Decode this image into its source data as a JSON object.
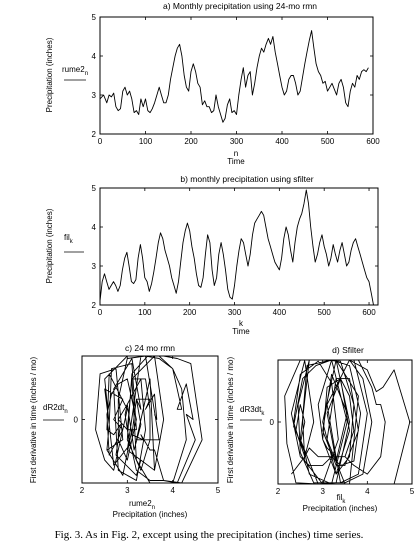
{
  "chart_data": [
    {
      "id": "a",
      "type": "line",
      "title": "a) Monthly precipitation using 24-mo rmn",
      "xlabel": "Time",
      "x_axis_symbol": "n",
      "ylabel": "Precipitation (inches)",
      "legend_label": "rume2",
      "legend_sub": "n",
      "xlim": [
        0,
        600
      ],
      "ylim": [
        2,
        5
      ],
      "xticks": [
        0,
        100,
        200,
        300,
        400,
        500,
        600
      ],
      "yticks": [
        2,
        3,
        4,
        5
      ],
      "x_end": 590,
      "series": [
        {
          "name": "rume2",
          "points": [
            [
              0,
              2.9
            ],
            [
              8,
              3.0
            ],
            [
              15,
              2.8
            ],
            [
              20,
              3.0
            ],
            [
              25,
              2.95
            ],
            [
              30,
              3.05
            ],
            [
              35,
              2.7
            ],
            [
              40,
              2.6
            ],
            [
              45,
              2.65
            ],
            [
              50,
              3.1
            ],
            [
              55,
              3.2
            ],
            [
              60,
              3.0
            ],
            [
              65,
              3.1
            ],
            [
              70,
              2.9
            ],
            [
              75,
              2.55
            ],
            [
              80,
              2.6
            ],
            [
              85,
              2.5
            ],
            [
              90,
              2.9
            ],
            [
              95,
              2.7
            ],
            [
              100,
              2.9
            ],
            [
              105,
              2.6
            ],
            [
              110,
              2.55
            ],
            [
              115,
              2.65
            ],
            [
              120,
              2.8
            ],
            [
              125,
              3.0
            ],
            [
              130,
              3.2
            ],
            [
              135,
              3.0
            ],
            [
              140,
              2.8
            ],
            [
              145,
              2.8
            ],
            [
              150,
              3.0
            ],
            [
              155,
              3.4
            ],
            [
              160,
              3.7
            ],
            [
              165,
              4.0
            ],
            [
              170,
              4.2
            ],
            [
              175,
              4.3
            ],
            [
              180,
              4.0
            ],
            [
              185,
              3.5
            ],
            [
              190,
              3.2
            ],
            [
              195,
              3.1
            ],
            [
              200,
              3.6
            ],
            [
              205,
              3.8
            ],
            [
              210,
              3.6
            ],
            [
              215,
              3.3
            ],
            [
              220,
              3.2
            ],
            [
              225,
              2.75
            ],
            [
              230,
              2.85
            ],
            [
              235,
              2.7
            ],
            [
              240,
              2.7
            ],
            [
              245,
              2.55
            ],
            [
              250,
              2.6
            ],
            [
              255,
              3.0
            ],
            [
              260,
              2.7
            ],
            [
              265,
              2.5
            ],
            [
              270,
              2.3
            ],
            [
              275,
              2.4
            ],
            [
              280,
              2.75
            ],
            [
              285,
              2.9
            ],
            [
              290,
              2.55
            ],
            [
              295,
              2.6
            ],
            [
              300,
              2.5
            ],
            [
              305,
              3.0
            ],
            [
              310,
              3.4
            ],
            [
              315,
              3.7
            ],
            [
              320,
              3.2
            ],
            [
              325,
              3.5
            ],
            [
              330,
              3.6
            ],
            [
              335,
              3.0
            ],
            [
              340,
              3.3
            ],
            [
              345,
              3.7
            ],
            [
              350,
              4.0
            ],
            [
              355,
              4.2
            ],
            [
              360,
              4.1
            ],
            [
              365,
              4.3
            ],
            [
              370,
              4.45
            ],
            [
              375,
              4.3
            ],
            [
              380,
              4.5
            ],
            [
              385,
              4.1
            ],
            [
              390,
              3.8
            ],
            [
              395,
              3.5
            ],
            [
              400,
              3.2
            ],
            [
              405,
              3.0
            ],
            [
              410,
              3.1
            ],
            [
              415,
              3.4
            ],
            [
              420,
              3.5
            ],
            [
              425,
              3.5
            ],
            [
              430,
              3.3
            ],
            [
              435,
              3.0
            ],
            [
              440,
              3.1
            ],
            [
              445,
              3.45
            ],
            [
              450,
              3.8
            ],
            [
              455,
              4.1
            ],
            [
              460,
              4.4
            ],
            [
              465,
              4.65
            ],
            [
              470,
              4.2
            ],
            [
              475,
              3.8
            ],
            [
              480,
              3.6
            ],
            [
              485,
              3.5
            ],
            [
              490,
              3.3
            ],
            [
              495,
              3.35
            ],
            [
              500,
              3.1
            ],
            [
              505,
              3.2
            ],
            [
              510,
              3.3
            ],
            [
              515,
              3.15
            ],
            [
              520,
              3.0
            ],
            [
              525,
              3.3
            ],
            [
              530,
              3.4
            ],
            [
              535,
              3.2
            ],
            [
              540,
              2.8
            ],
            [
              545,
              2.7
            ],
            [
              550,
              3.1
            ],
            [
              555,
              3.3
            ],
            [
              560,
              3.2
            ],
            [
              565,
              3.5
            ],
            [
              570,
              3.4
            ],
            [
              575,
              3.6
            ],
            [
              580,
              3.65
            ],
            [
              585,
              3.6
            ],
            [
              590,
              3.7
            ]
          ]
        }
      ]
    },
    {
      "id": "b",
      "type": "line",
      "title": "b) monthly precipitation using sfilter",
      "xlabel": "Time",
      "x_axis_symbol": "k",
      "ylabel": "Precipitation (inches)",
      "legend_label": "fil",
      "legend_sub": "k",
      "xlim": [
        0,
        620
      ],
      "ylim": [
        2,
        5
      ],
      "xticks": [
        0,
        100,
        200,
        300,
        400,
        500,
        600
      ],
      "yticks": [
        2,
        3,
        4,
        5
      ],
      "x_end": 610,
      "series": [
        {
          "name": "fil",
          "points": [
            [
              0,
              2.1
            ],
            [
              5,
              2.6
            ],
            [
              10,
              2.8
            ],
            [
              15,
              2.6
            ],
            [
              20,
              2.4
            ],
            [
              25,
              2.5
            ],
            [
              30,
              2.6
            ],
            [
              35,
              2.5
            ],
            [
              40,
              2.35
            ],
            [
              45,
              2.5
            ],
            [
              50,
              2.9
            ],
            [
              55,
              3.2
            ],
            [
              60,
              3.35
            ],
            [
              65,
              3.0
            ],
            [
              70,
              2.6
            ],
            [
              75,
              2.55
            ],
            [
              80,
              2.65
            ],
            [
              85,
              3.2
            ],
            [
              90,
              3.55
            ],
            [
              95,
              3.2
            ],
            [
              100,
              2.7
            ],
            [
              105,
              2.6
            ],
            [
              110,
              2.35
            ],
            [
              115,
              2.55
            ],
            [
              120,
              2.85
            ],
            [
              125,
              3.2
            ],
            [
              130,
              3.6
            ],
            [
              135,
              3.85
            ],
            [
              140,
              3.7
            ],
            [
              145,
              3.4
            ],
            [
              150,
              3.2
            ],
            [
              155,
              3.0
            ],
            [
              160,
              2.7
            ],
            [
              165,
              2.5
            ],
            [
              170,
              2.3
            ],
            [
              175,
              2.6
            ],
            [
              180,
              3.1
            ],
            [
              185,
              3.6
            ],
            [
              190,
              3.9
            ],
            [
              195,
              4.1
            ],
            [
              200,
              3.9
            ],
            [
              205,
              3.5
            ],
            [
              210,
              3.2
            ],
            [
              215,
              2.8
            ],
            [
              220,
              2.5
            ],
            [
              225,
              2.45
            ],
            [
              230,
              2.7
            ],
            [
              235,
              3.3
            ],
            [
              240,
              3.8
            ],
            [
              245,
              3.6
            ],
            [
              250,
              2.9
            ],
            [
              255,
              2.5
            ],
            [
              260,
              2.7
            ],
            [
              265,
              3.3
            ],
            [
              270,
              3.6
            ],
            [
              275,
              3.3
            ],
            [
              280,
              2.9
            ],
            [
              285,
              2.4
            ],
            [
              290,
              2.2
            ],
            [
              295,
              2.15
            ],
            [
              300,
              2.5
            ],
            [
              305,
              3.0
            ],
            [
              310,
              3.4
            ],
            [
              315,
              3.7
            ],
            [
              320,
              3.6
            ],
            [
              325,
              3.3
            ],
            [
              330,
              3.0
            ],
            [
              335,
              3.3
            ],
            [
              340,
              3.8
            ],
            [
              345,
              4.1
            ],
            [
              350,
              4.2
            ],
            [
              355,
              4.3
            ],
            [
              360,
              4.4
            ],
            [
              365,
              4.3
            ],
            [
              370,
              4.0
            ],
            [
              375,
              3.7
            ],
            [
              380,
              3.5
            ],
            [
              385,
              3.3
            ],
            [
              390,
              3.1
            ],
            [
              395,
              3.0
            ],
            [
              400,
              2.9
            ],
            [
              405,
              3.2
            ],
            [
              410,
              3.7
            ],
            [
              415,
              4.0
            ],
            [
              420,
              3.8
            ],
            [
              425,
              3.4
            ],
            [
              430,
              3.1
            ],
            [
              435,
              3.6
            ],
            [
              440,
              4.0
            ],
            [
              445,
              4.2
            ],
            [
              450,
              4.35
            ],
            [
              455,
              4.6
            ],
            [
              460,
              4.95
            ],
            [
              465,
              4.6
            ],
            [
              470,
              4.0
            ],
            [
              475,
              3.5
            ],
            [
              480,
              3.1
            ],
            [
              485,
              3.3
            ],
            [
              490,
              3.6
            ],
            [
              495,
              3.8
            ],
            [
              500,
              3.5
            ],
            [
              505,
              3.3
            ],
            [
              510,
              3.0
            ],
            [
              515,
              3.2
            ],
            [
              520,
              3.55
            ],
            [
              525,
              3.3
            ],
            [
              530,
              3.1
            ],
            [
              535,
              3.4
            ],
            [
              540,
              3.6
            ],
            [
              545,
              3.3
            ],
            [
              550,
              3.0
            ],
            [
              555,
              3.1
            ],
            [
              560,
              3.4
            ],
            [
              565,
              3.6
            ],
            [
              570,
              3.7
            ],
            [
              575,
              3.5
            ],
            [
              580,
              3.3
            ],
            [
              585,
              3.1
            ],
            [
              590,
              2.9
            ],
            [
              595,
              2.7
            ],
            [
              600,
              2.6
            ],
            [
              605,
              2.3
            ],
            [
              610,
              2.0
            ]
          ]
        }
      ]
    },
    {
      "id": "c",
      "type": "line",
      "title": "c) 24 mo rmn",
      "xlabel": "Precipitation (inches)",
      "x_axis_symbol": "rume2",
      "x_axis_symbol_sub": "n",
      "ylabel": "First derivative in time (inches / mo)",
      "legend_label": "dR2dt",
      "legend_sub": "n",
      "xlim": [
        2,
        5
      ],
      "ylim": [
        -1,
        1
      ],
      "xticks": [
        2,
        3,
        4,
        5
      ],
      "yticks": [
        0
      ]
    },
    {
      "id": "d",
      "type": "line",
      "title": "d) Sfilter",
      "xlabel": "Precipitation (inches)",
      "x_axis_symbol": "fil",
      "x_axis_symbol_sub": "k",
      "ylabel": "First derivative in time (inches / mo)",
      "legend_label": "dR3dt",
      "legend_sub": "k",
      "xlim": [
        2,
        5
      ],
      "ylim": [
        -1,
        1
      ],
      "xticks": [
        2,
        3,
        4,
        5
      ],
      "yticks": [
        0
      ]
    }
  ],
  "caption": "Fig. 3. As in Fig. 2, except using the precipitation (inches) time series."
}
